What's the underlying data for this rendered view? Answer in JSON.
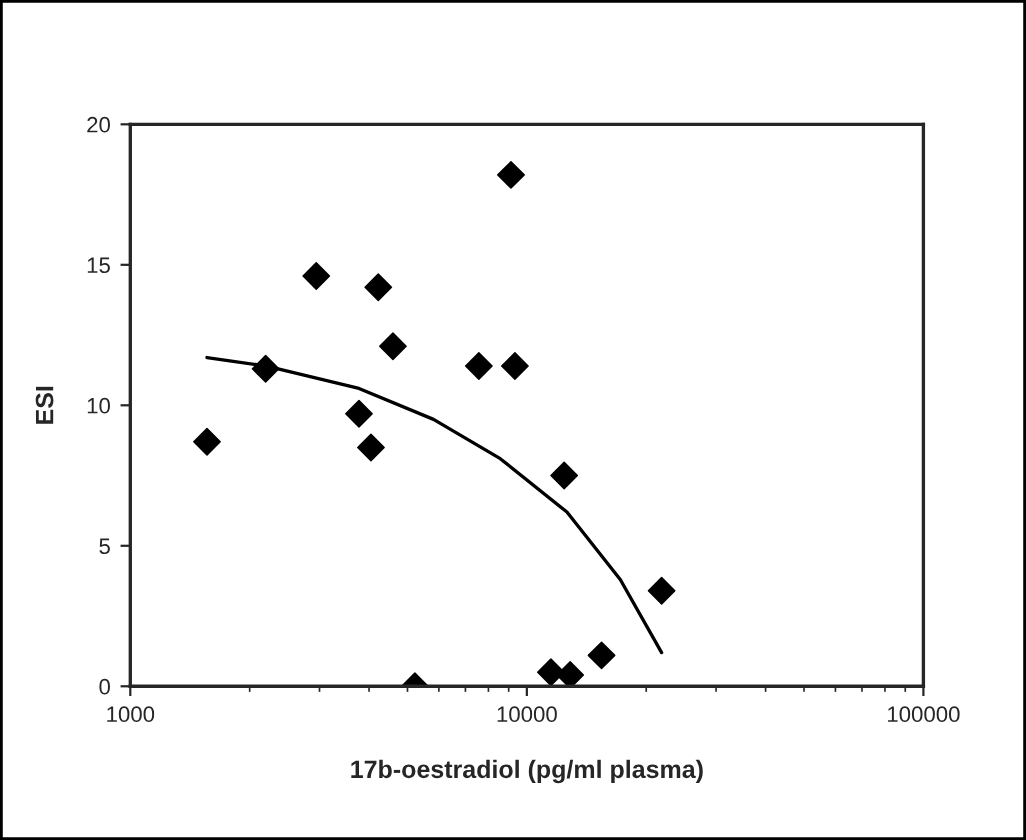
{
  "chart_data": {
    "type": "scatter",
    "xlabel": "17b-oestradiol (pg/ml plasma)",
    "ylabel": "ESI",
    "log": "x",
    "marker": "diamond",
    "grid": false,
    "xlim": [
      1000,
      100000
    ],
    "xticks": [
      1000,
      10000,
      100000
    ],
    "ylim": [
      0,
      20
    ],
    "yticks": [
      0,
      5,
      10,
      15,
      20
    ],
    "series": [
      {
        "color": "#000000",
        "x": [
          1561,
          2194,
          2944,
          3773,
          4045,
          4220,
          4595,
          5220,
          7568,
          9120,
          9330,
          11500,
          12420,
          12860,
          15430,
          21870
        ],
        "values": [
          8.7,
          11.3,
          14.6,
          9.7,
          8.5,
          14.2,
          12.1,
          0,
          11.4,
          18.2,
          11.4,
          0.5,
          7.5,
          0.4,
          1.1,
          3.4
        ]
      },
      {
        "type": "line",
        "color": "#000000",
        "marker": "none",
        "x": [
          1561,
          2194,
          3773,
          5816,
          8570,
          12620,
          17200,
          21870
        ],
        "values": [
          11.7,
          11.4,
          10.6,
          9.5,
          8.1,
          6.2,
          3.8,
          1.2
        ]
      }
    ]
  }
}
